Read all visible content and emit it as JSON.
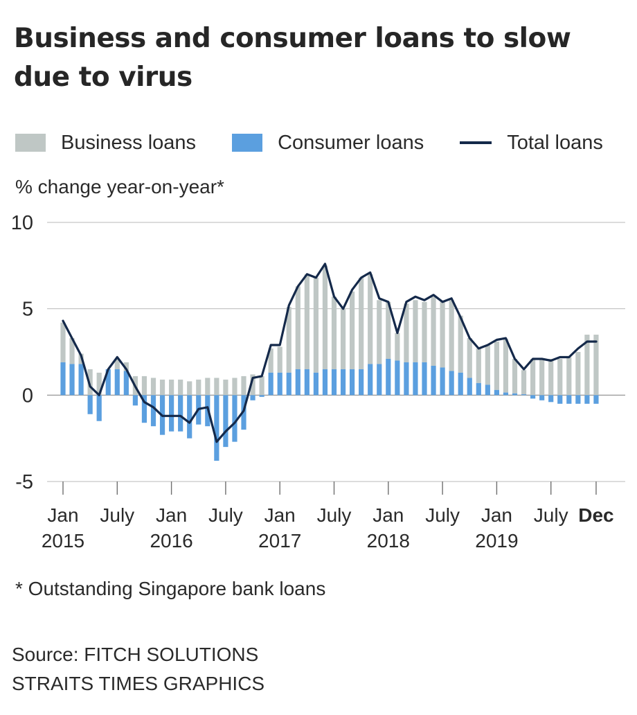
{
  "title": "Business and consumer loans to slow due to virus",
  "legend": {
    "business": "Business loans",
    "consumer": "Consumer loans",
    "total": "Total loans"
  },
  "unit_label": "% change year-on-year*",
  "footnote": "* Outstanding Singapore bank loans",
  "source_line1": "Source: FITCH SOLUTIONS",
  "source_line2": "STRAITS TIMES GRAPHICS",
  "colors": {
    "business": "#bfc7c5",
    "consumer": "#5b9fdf",
    "total": "#14294a",
    "grid": "#b8b8b8"
  },
  "chart_data": {
    "type": "bar",
    "title": "Business and consumer loans to slow due to virus",
    "ylabel": "% change year-on-year*",
    "ylim": [
      -5,
      10
    ],
    "yticks": [
      -5,
      0,
      5,
      10
    ],
    "xticks": [
      {
        "index": 0,
        "lines": [
          "Jan",
          "2015"
        ]
      },
      {
        "index": 6,
        "lines": [
          "July",
          ""
        ]
      },
      {
        "index": 12,
        "lines": [
          "Jan",
          "2016"
        ]
      },
      {
        "index": 18,
        "lines": [
          "July",
          ""
        ]
      },
      {
        "index": 24,
        "lines": [
          "Jan",
          "2017"
        ]
      },
      {
        "index": 30,
        "lines": [
          "July",
          ""
        ]
      },
      {
        "index": 36,
        "lines": [
          "Jan",
          "2018"
        ]
      },
      {
        "index": 42,
        "lines": [
          "July",
          ""
        ]
      },
      {
        "index": 48,
        "lines": [
          "Jan",
          "2019"
        ]
      },
      {
        "index": 54,
        "lines": [
          "July",
          ""
        ]
      },
      {
        "index": 59,
        "lines": [
          "Dec",
          ""
        ],
        "bold": true
      }
    ],
    "series": [
      {
        "name": "Consumer loans",
        "type": "bar",
        "values": [
          1.9,
          1.8,
          1.8,
          -1.1,
          -1.5,
          1.5,
          1.5,
          1.4,
          -0.6,
          -1.6,
          -1.8,
          -2.3,
          -2.1,
          -2.1,
          -2.5,
          -1.7,
          -1.8,
          -3.8,
          -3.0,
          -2.7,
          -2.0,
          -0.3,
          -0.1,
          1.3,
          1.3,
          1.3,
          1.5,
          1.5,
          1.3,
          1.5,
          1.5,
          1.5,
          1.5,
          1.5,
          1.8,
          1.8,
          2.1,
          2.0,
          1.9,
          1.9,
          1.9,
          1.7,
          1.6,
          1.4,
          1.3,
          1.0,
          0.7,
          0.6,
          0.3,
          0.15,
          0.1,
          0.05,
          -0.2,
          -0.3,
          -0.4,
          -0.5,
          -0.5,
          -0.5,
          -0.5,
          -0.5
        ]
      },
      {
        "name": "Business loans",
        "type": "bar",
        "values": [
          2.3,
          1.5,
          0.6,
          1.5,
          1.3,
          0.0,
          0.6,
          0.5,
          1.1,
          1.1,
          1.0,
          0.9,
          0.9,
          0.9,
          0.8,
          0.9,
          1.0,
          1.0,
          0.9,
          1.0,
          1.1,
          1.2,
          1.1,
          1.4,
          1.5,
          3.8,
          4.8,
          5.5,
          5.5,
          6.0,
          4.2,
          3.5,
          4.5,
          5.3,
          5.2,
          3.7,
          3.3,
          1.6,
          3.4,
          3.6,
          3.5,
          4.0,
          3.8,
          4.1,
          3.3,
          2.3,
          2.0,
          2.3,
          2.8,
          3.1,
          2.0,
          1.4,
          2.1,
          2.1,
          2.1,
          2.1,
          2.2,
          2.5,
          3.5,
          3.5
        ]
      },
      {
        "name": "Total loans",
        "type": "line",
        "values": [
          4.3,
          3.3,
          2.3,
          0.5,
          0.0,
          1.5,
          2.2,
          1.5,
          0.5,
          -0.4,
          -0.7,
          -1.2,
          -1.2,
          -1.2,
          -1.6,
          -0.8,
          -0.7,
          -2.7,
          -2.1,
          -1.6,
          -0.9,
          1.0,
          1.1,
          2.9,
          2.9,
          5.2,
          6.3,
          7.0,
          6.8,
          7.6,
          5.7,
          5.0,
          6.1,
          6.8,
          7.1,
          5.6,
          5.4,
          3.6,
          5.4,
          5.7,
          5.5,
          5.8,
          5.4,
          5.6,
          4.5,
          3.3,
          2.7,
          2.9,
          3.2,
          3.3,
          2.1,
          1.5,
          2.1,
          2.1,
          2.0,
          2.2,
          2.2,
          2.7,
          3.1,
          3.1
        ]
      }
    ]
  }
}
